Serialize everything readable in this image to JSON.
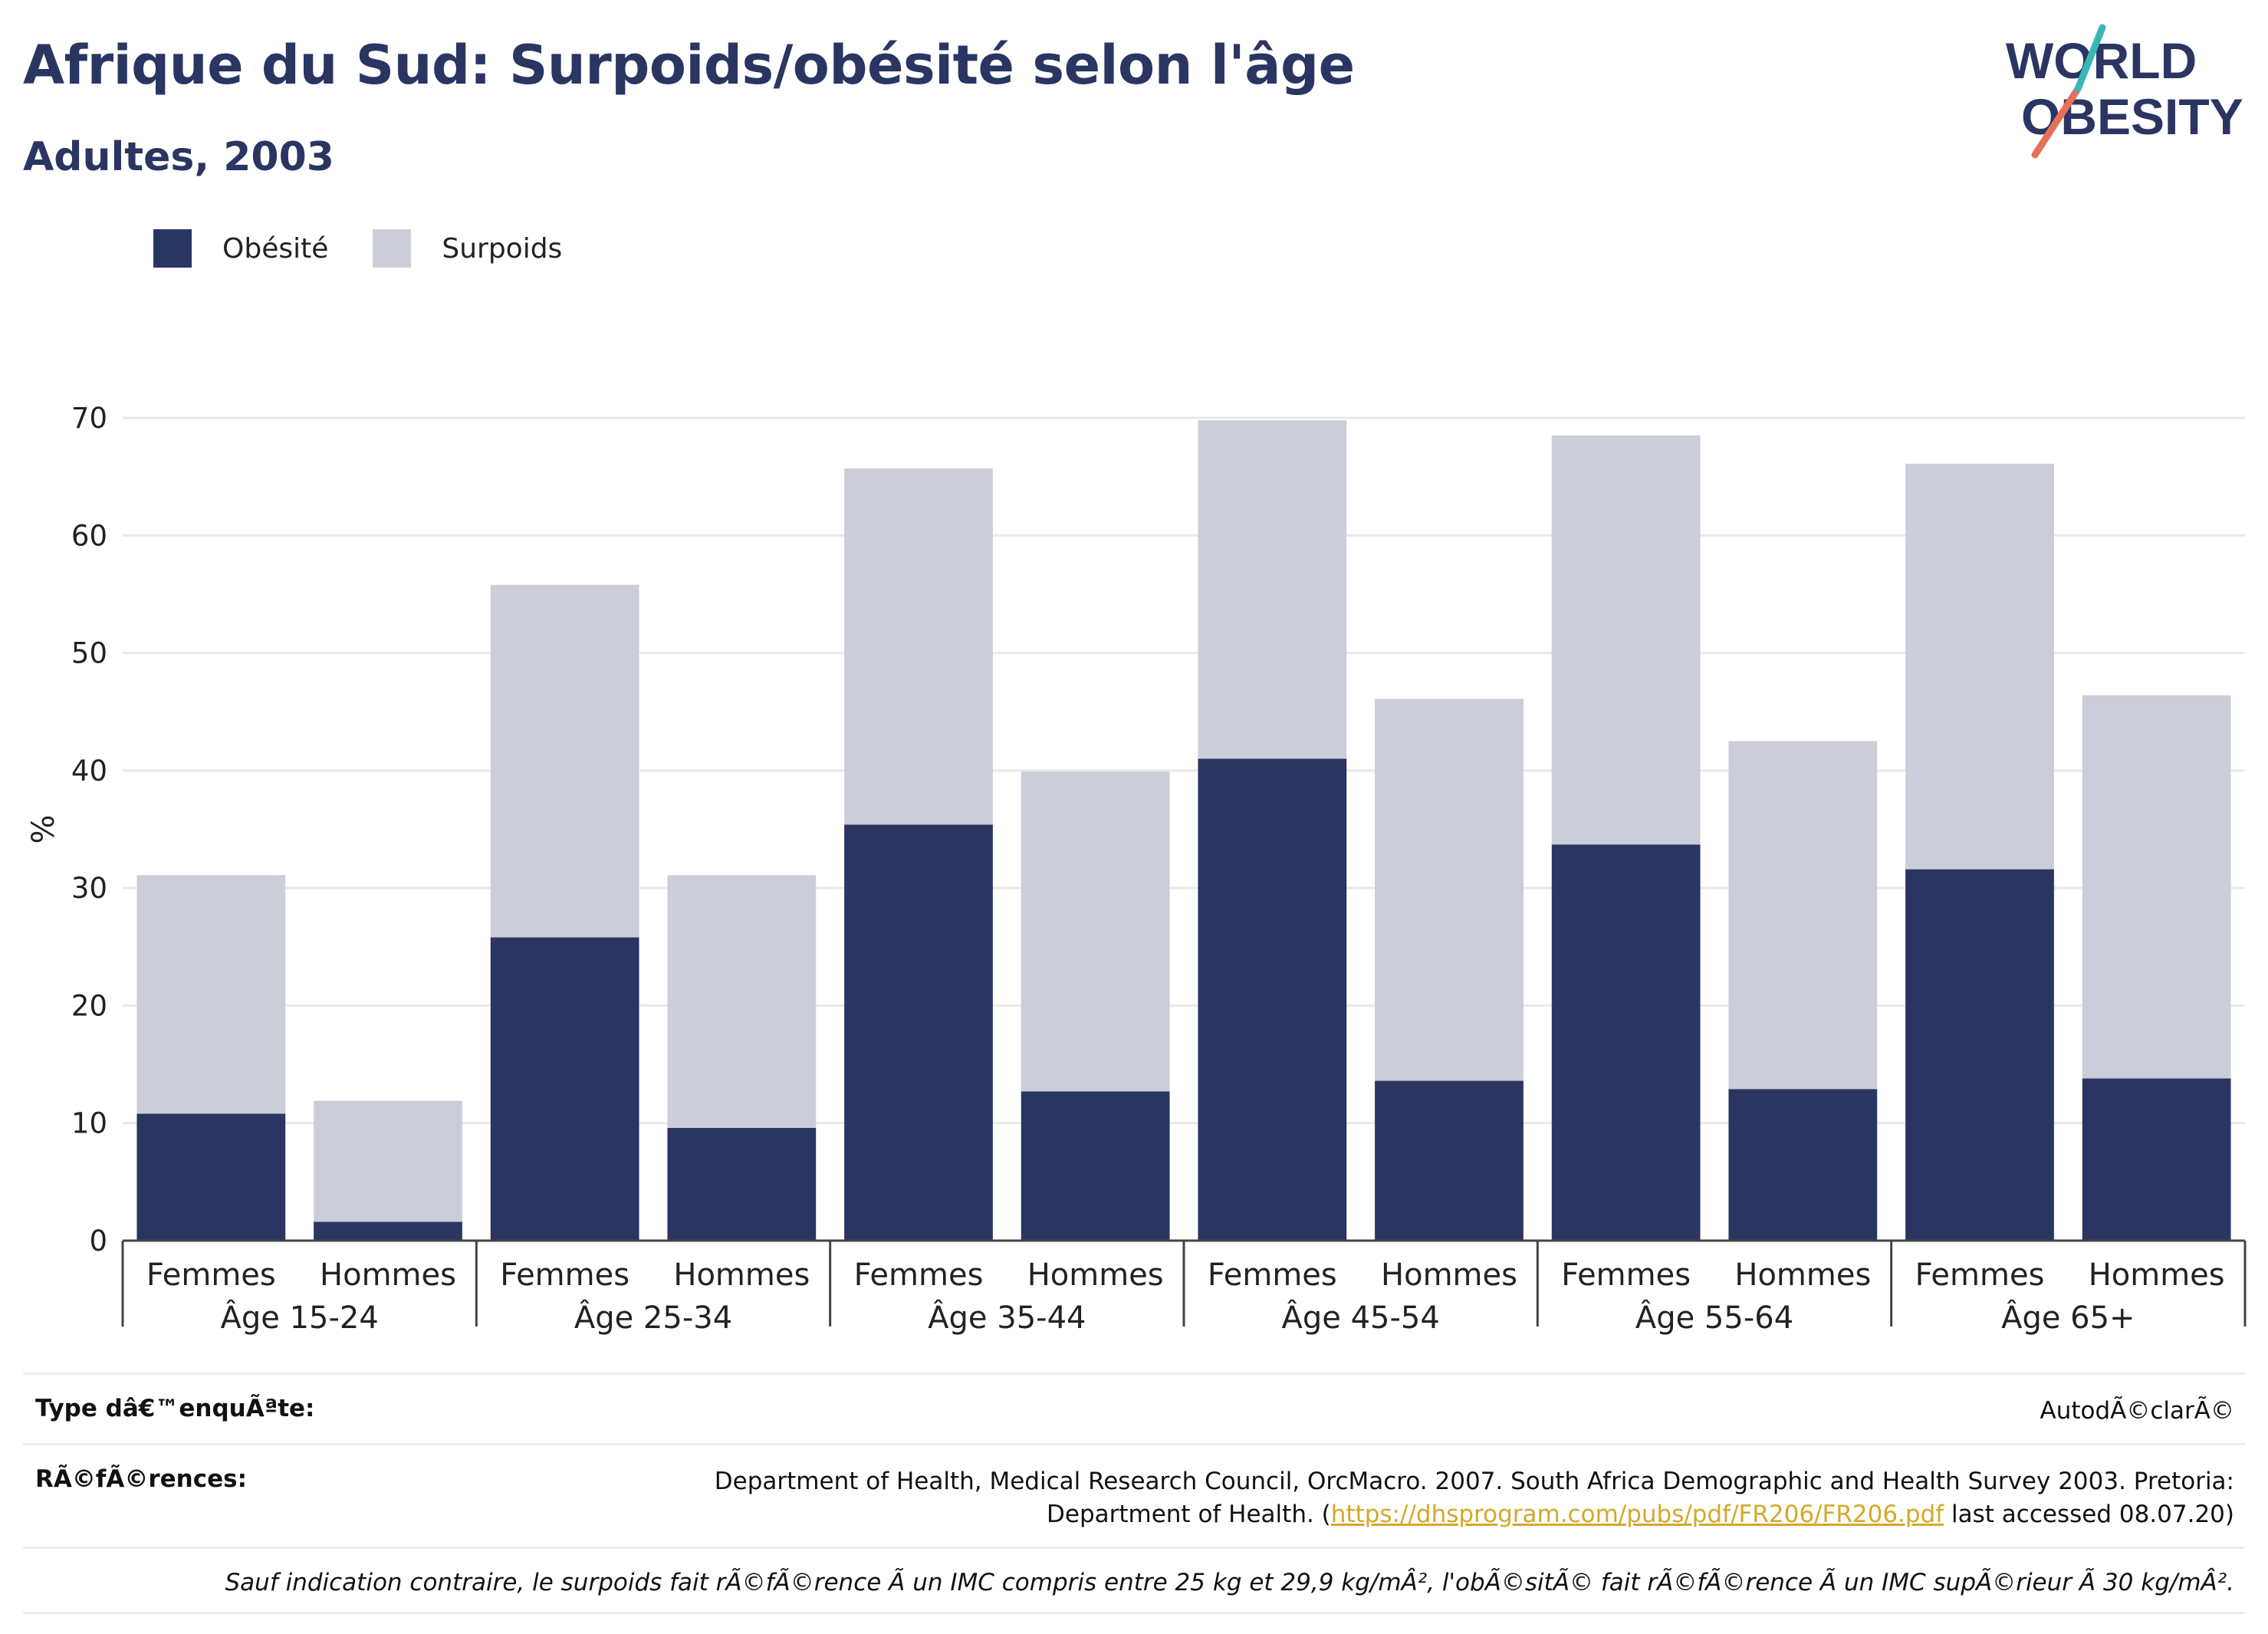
{
  "header": {
    "title": "Afrique du Sud: Surpoids/obésité selon l'âge",
    "subtitle": "Adultes, 2003",
    "logo_line1": "WORLD",
    "logo_line2": "OBESITY"
  },
  "colors": {
    "obesity": "#2a3562",
    "overweight": "#cbcdd9",
    "accent_teal": "#3ab7b5",
    "accent_coral": "#e8705a",
    "link": "#d4a82a"
  },
  "chart_data": {
    "type": "bar",
    "stacked": true,
    "ylabel": "%",
    "ylim": [
      0,
      70
    ],
    "yticks": [
      0,
      10,
      20,
      30,
      40,
      50,
      60,
      70
    ],
    "grid": true,
    "legend_position": "top-left",
    "groups": [
      "Âge 15-24",
      "Âge 25-34",
      "Âge 35-44",
      "Âge 45-54",
      "Âge 55-64",
      "Âge 65+"
    ],
    "subcategories": [
      "Femmes",
      "Hommes"
    ],
    "series": [
      {
        "name": "Obésité",
        "values": [
          10.8,
          1.6,
          25.8,
          9.6,
          35.4,
          12.7,
          41.0,
          13.6,
          33.7,
          12.9,
          31.6,
          13.8
        ]
      },
      {
        "name": "Surpoids",
        "values": [
          20.3,
          10.3,
          30.0,
          21.5,
          30.3,
          27.2,
          28.8,
          32.5,
          34.8,
          29.6,
          34.5,
          32.6
        ]
      }
    ]
  },
  "footer": {
    "survey_label": "Type dâ€™enquÃªte:",
    "survey_value": "AutodÃ©clarÃ©",
    "ref_label": "RÃ©fÃ©rences:",
    "ref_line1": "Department of Health, Medical Research Council, OrcMacro. 2007. South Africa Demographic and Health Survey 2003. Pretoria:",
    "ref_line2_pre": "Department of Health. (",
    "ref_link": "https://dhsprogram.com/pubs/pdf/FR206/FR206.pdf",
    "ref_line2_post": " last accessed 08.07.20)",
    "note": "Sauf indication contraire, le surpoids fait rÃ©fÃ©rence Ã  un IMC compris entre 25 kg et 29,9 kg/mÂ², l'obÃ©sitÃ© fait rÃ©fÃ©rence Ã  un IMC supÃ©rieur Ã  30 kg/mÂ²."
  }
}
